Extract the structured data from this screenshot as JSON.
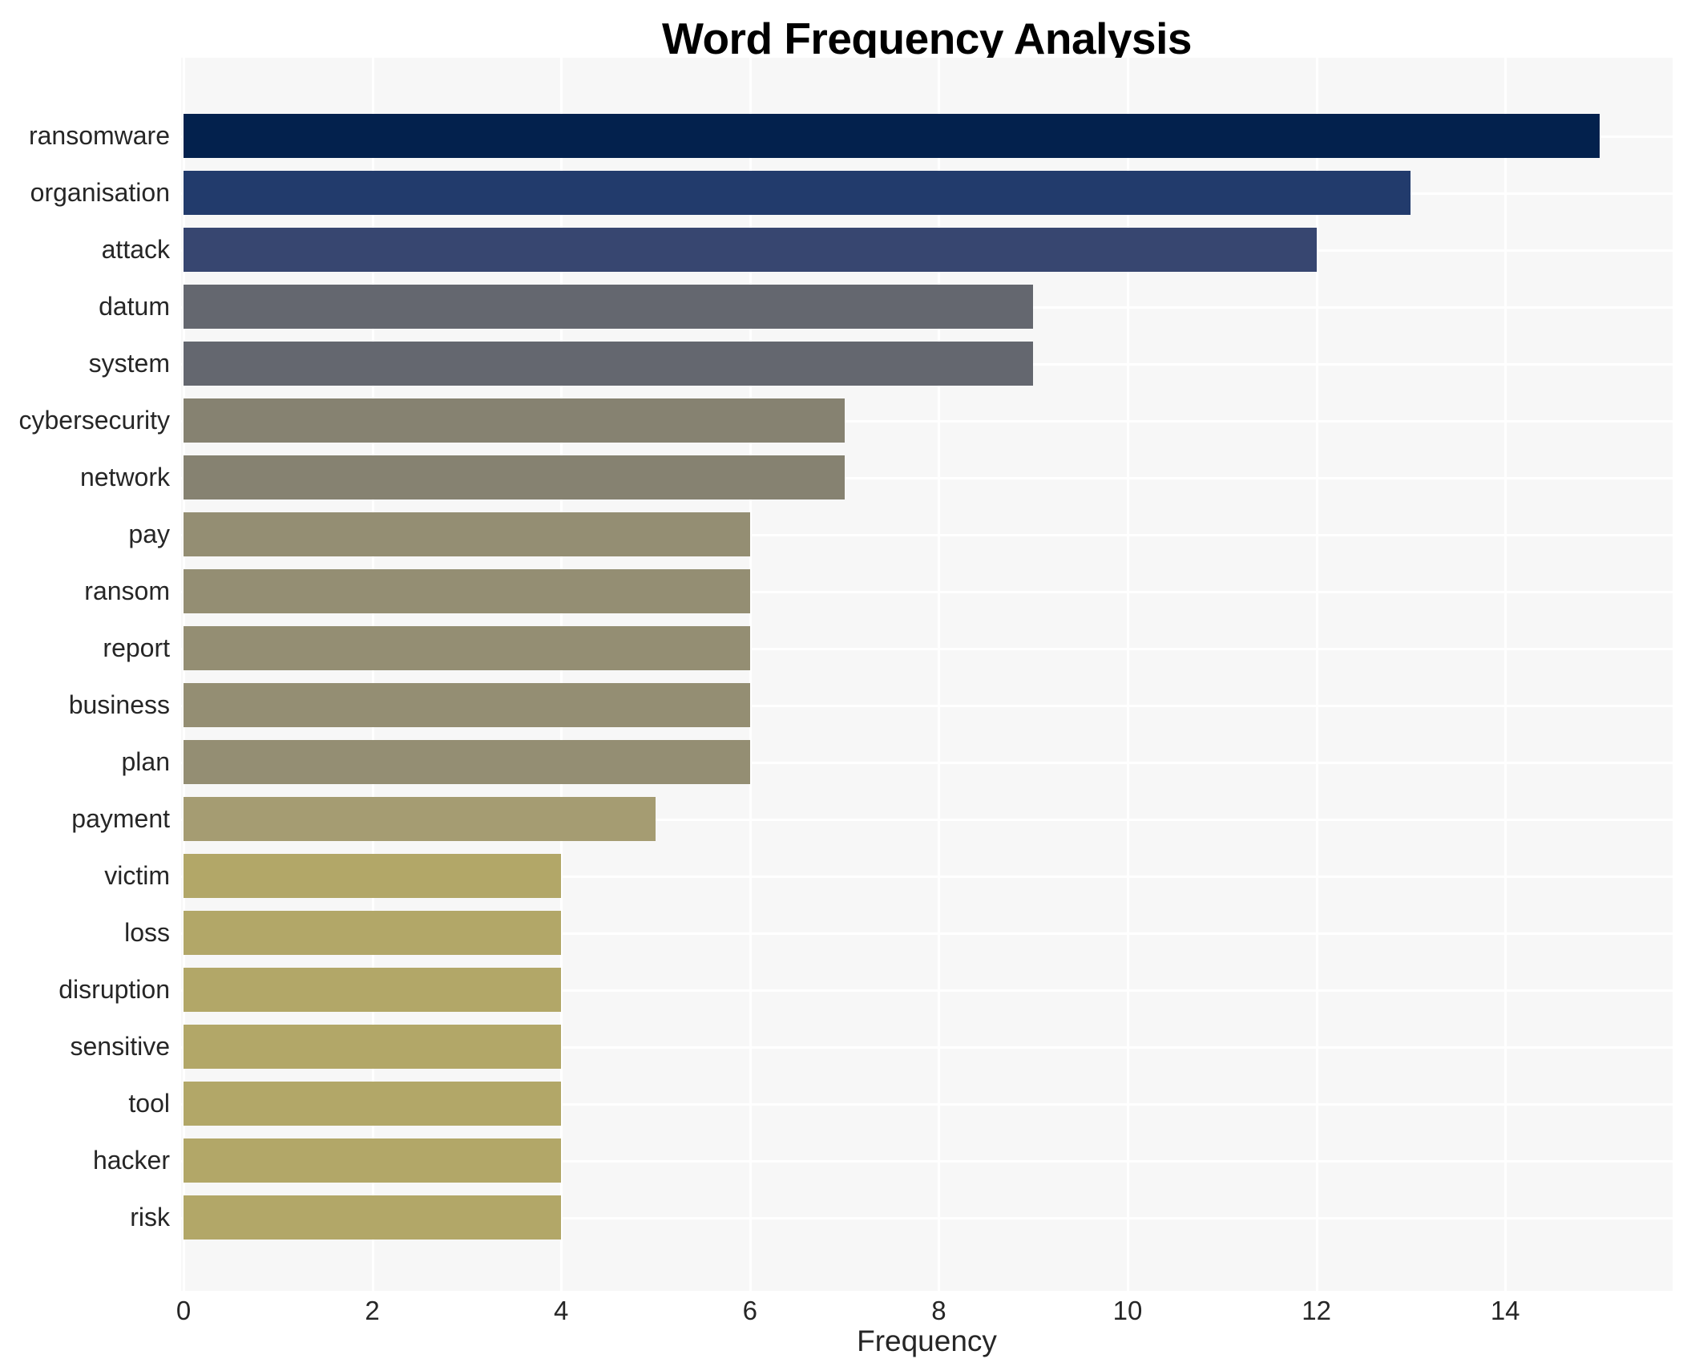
{
  "chart_data": {
    "type": "bar",
    "orientation": "horizontal",
    "title": "Word Frequency Analysis",
    "xlabel": "Frequency",
    "ylabel": "",
    "categories": [
      "ransomware",
      "organisation",
      "attack",
      "datum",
      "system",
      "cybersecurity",
      "network",
      "pay",
      "ransom",
      "report",
      "business",
      "plan",
      "payment",
      "victim",
      "loss",
      "disruption",
      "sensitive",
      "tool",
      "hacker",
      "risk"
    ],
    "values": [
      15,
      13,
      12,
      9,
      9,
      7,
      7,
      6,
      6,
      6,
      6,
      6,
      5,
      4,
      4,
      4,
      4,
      4,
      4,
      4
    ],
    "bar_colors": [
      "#03214d",
      "#223b6c",
      "#374670",
      "#64676f",
      "#64676f",
      "#868271",
      "#868271",
      "#948e73",
      "#948e73",
      "#948e73",
      "#948e73",
      "#948e73",
      "#a59c72",
      "#b2a768",
      "#b2a768",
      "#b2a768",
      "#b2a768",
      "#b2a768",
      "#b2a768",
      "#b2a768"
    ],
    "xticks": [
      "0",
      "2",
      "4",
      "6",
      "8",
      "10",
      "12",
      "14"
    ],
    "xlim": [
      0,
      15.8
    ],
    "grid": {
      "panel_bg": "#f7f7f7",
      "line_color": "#ffffff",
      "vertical": true,
      "horizontal": true
    },
    "text_color": "#262626"
  }
}
